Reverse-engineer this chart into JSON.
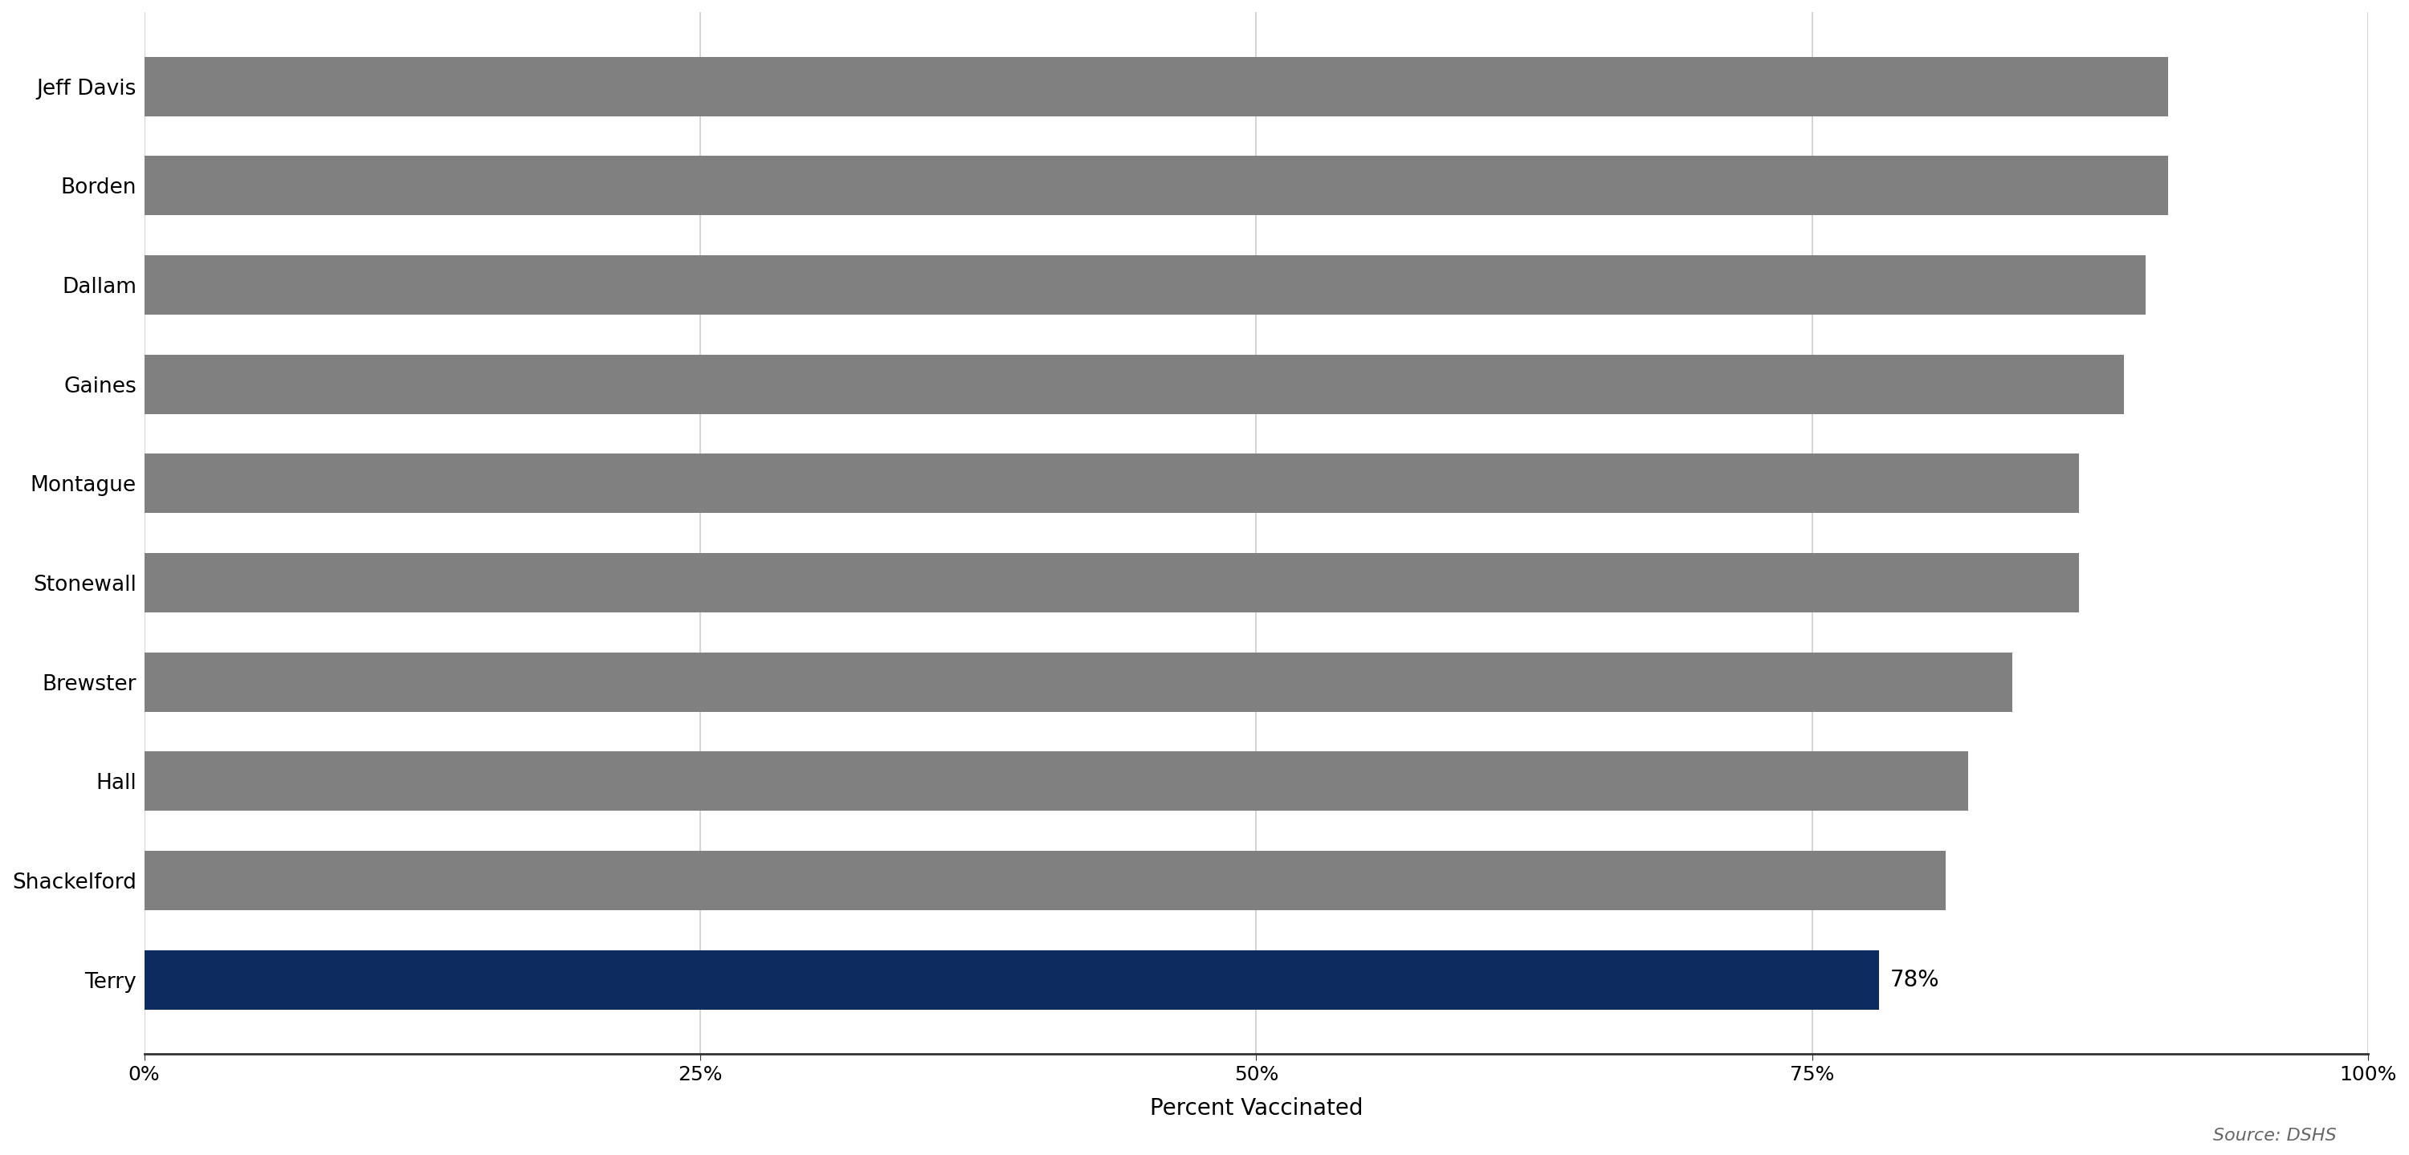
{
  "counties": [
    "Jeff Davis",
    "Borden",
    "Dallam",
    "Gaines",
    "Montague",
    "Stonewall",
    "Brewster",
    "Hall",
    "Shackelford",
    "Terry"
  ],
  "values": [
    91,
    91,
    90,
    89,
    87,
    87,
    84,
    82,
    81,
    78
  ],
  "bar_colors": [
    "#808080",
    "#808080",
    "#808080",
    "#808080",
    "#808080",
    "#808080",
    "#808080",
    "#808080",
    "#808080",
    "#0d2b5e"
  ],
  "highlight_label": "78%",
  "xlabel": "Percent Vaccinated",
  "xlim": [
    0,
    100
  ],
  "xticks": [
    0,
    25,
    50,
    75,
    100
  ],
  "xtick_labels": [
    "0%",
    "25%",
    "50%",
    "75%",
    "100%"
  ],
  "source_text": "Source: DSHS",
  "title_fontsize": 28,
  "subtitle_fontsize": 22,
  "tick_fontsize": 18,
  "xlabel_fontsize": 20,
  "ylabel_fontsize": 19,
  "annotation_fontsize": 20,
  "source_fontsize": 16,
  "background_color": "#ffffff",
  "grid_color": "#cccccc",
  "title_color": "#000000",
  "subtitle_highlight_color": "#1a3a6e",
  "subtitle_rest_color": "#000000",
  "bar_height": 0.6
}
